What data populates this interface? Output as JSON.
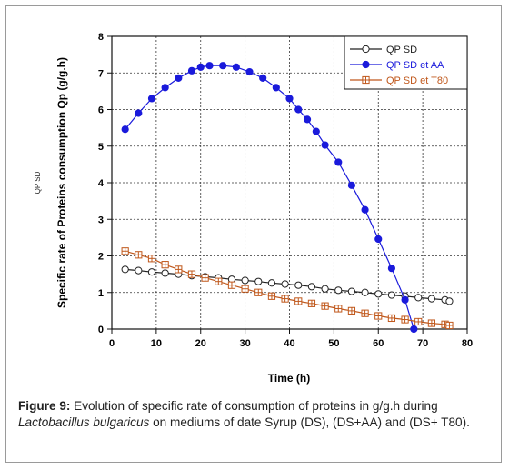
{
  "chart_data": {
    "type": "line",
    "xlabel": "Time (h)",
    "ylabel": "Specific rate of Proteins consumption Qp (g/g.h)",
    "side_label": "QP SD",
    "xlim": [
      0,
      80
    ],
    "ylim": [
      0,
      8
    ],
    "xticks": [
      0,
      10,
      20,
      30,
      40,
      50,
      60,
      70,
      80
    ],
    "yticks": [
      0,
      1,
      2,
      3,
      4,
      5,
      6,
      7,
      8
    ],
    "grid": true,
    "legend_position": "top-right",
    "series": [
      {
        "name": "QP SD",
        "color": "#222222",
        "marker": "open-circle",
        "x": [
          3,
          6,
          9,
          12,
          15,
          18,
          21,
          24,
          27,
          30,
          33,
          36,
          39,
          42,
          45,
          48,
          51,
          54,
          57,
          60,
          63,
          66,
          69,
          72,
          75,
          76
        ],
        "y": [
          1.63,
          1.6,
          1.56,
          1.53,
          1.5,
          1.46,
          1.43,
          1.4,
          1.36,
          1.33,
          1.3,
          1.26,
          1.23,
          1.2,
          1.16,
          1.1,
          1.06,
          1.03,
          1.0,
          0.96,
          0.93,
          0.9,
          0.86,
          0.83,
          0.8,
          0.76
        ]
      },
      {
        "name": "QP SD et AA",
        "color": "#1a1adb",
        "marker": "filled-circle",
        "x": [
          3,
          6,
          9,
          12,
          15,
          18,
          20,
          22,
          25,
          28,
          31,
          34,
          37,
          40,
          42,
          44,
          46,
          48,
          51,
          54,
          57,
          60,
          63,
          66,
          68
        ],
        "y": [
          5.46,
          5.9,
          6.3,
          6.6,
          6.86,
          7.06,
          7.16,
          7.2,
          7.2,
          7.16,
          7.03,
          6.86,
          6.6,
          6.3,
          6.0,
          5.73,
          5.4,
          5.03,
          4.56,
          3.93,
          3.26,
          2.46,
          1.66,
          0.8,
          0.0
        ]
      },
      {
        "name": "QP SD et T80",
        "color": "#c0581c",
        "marker": "open-square-cross",
        "x": [
          3,
          6,
          9,
          12,
          15,
          18,
          21,
          24,
          27,
          30,
          33,
          36,
          39,
          42,
          45,
          48,
          51,
          54,
          57,
          60,
          63,
          66,
          69,
          72,
          75,
          76
        ],
        "y": [
          2.13,
          2.03,
          1.93,
          1.76,
          1.63,
          1.5,
          1.4,
          1.3,
          1.2,
          1.1,
          1.0,
          0.9,
          0.83,
          0.76,
          0.7,
          0.63,
          0.56,
          0.5,
          0.43,
          0.36,
          0.3,
          0.26,
          0.2,
          0.16,
          0.13,
          0.1
        ]
      }
    ]
  },
  "caption": {
    "label": "Figure 9:",
    "text_1": " Evolution of specific rate of consumption of proteins in g/g.h during ",
    "organism": "Lactobacillus bulgaricus",
    "text_2": " on mediums of date Syrup (DS), (DS+AA) and (DS+ T80)."
  }
}
